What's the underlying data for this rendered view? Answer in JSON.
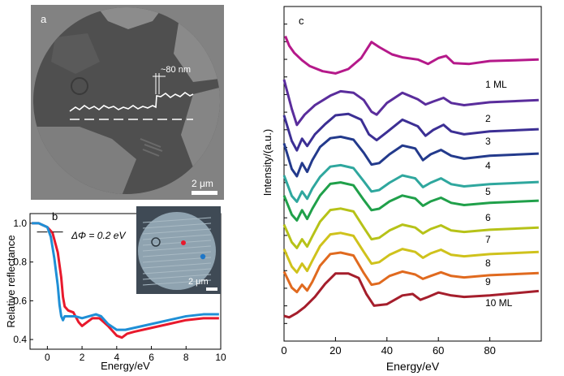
{
  "panel_a": {
    "label": "a",
    "step_label": "~80 nm",
    "scale_label": "2 μm",
    "colors": {
      "background": "#828282",
      "disk": "#4f4f4f",
      "bright_grain": "#8c8c8c",
      "trace": "#ffffff"
    }
  },
  "chart_data": [
    {
      "type": "line",
      "panel": "b",
      "label": "b",
      "xlabel": "Energy/eV",
      "ylabel": "Relative reflectance",
      "xlim": [
        -1,
        10
      ],
      "ylim": [
        0.35,
        1.05
      ],
      "xticks": [
        0,
        2,
        4,
        6,
        8,
        10
      ],
      "yticks": [
        0.4,
        0.6,
        0.8,
        1.0
      ],
      "xtick_labels": [
        "0",
        "2",
        "4",
        "6",
        "8",
        "10"
      ],
      "ytick_labels": [
        "0.4",
        "0.6",
        "0.8",
        "1.0"
      ],
      "annotation": "ΔΦ = 0.2 eV",
      "inset": {
        "scale_label": "2 μm",
        "marker_colors": [
          "#e8192c",
          "#1f77c8"
        ]
      },
      "grid": false,
      "series": [
        {
          "color": "#e8192c",
          "x": [
            -0.9,
            -0.5,
            0.0,
            0.3,
            0.6,
            0.8,
            0.9,
            1.0,
            1.1,
            1.2,
            1.5,
            1.8,
            2.0,
            2.3,
            2.6,
            3.0,
            3.5,
            4.0,
            4.3,
            4.6,
            5.0,
            6.0,
            7.0,
            8.0,
            9.0,
            9.9
          ],
          "y": [
            1.0,
            1.0,
            0.98,
            0.95,
            0.85,
            0.72,
            0.62,
            0.57,
            0.56,
            0.55,
            0.54,
            0.49,
            0.47,
            0.49,
            0.51,
            0.51,
            0.47,
            0.42,
            0.41,
            0.43,
            0.44,
            0.46,
            0.48,
            0.5,
            0.51,
            0.51
          ]
        },
        {
          "color": "#1f8fd6",
          "x": [
            -0.9,
            -0.5,
            0.0,
            0.2,
            0.4,
            0.6,
            0.7,
            0.8,
            0.9,
            1.0,
            1.3,
            1.6,
            2.0,
            2.4,
            2.8,
            3.1,
            3.5,
            4.0,
            4.5,
            5.0,
            6.0,
            7.0,
            8.0,
            9.0,
            9.9
          ],
          "y": [
            1.0,
            1.0,
            0.98,
            0.93,
            0.82,
            0.68,
            0.58,
            0.52,
            0.5,
            0.52,
            0.52,
            0.52,
            0.51,
            0.52,
            0.53,
            0.52,
            0.48,
            0.45,
            0.45,
            0.46,
            0.48,
            0.5,
            0.52,
            0.53,
            0.53
          ]
        }
      ]
    },
    {
      "type": "line",
      "panel": "c",
      "label": "c",
      "xlabel": "Energy/eV",
      "ylabel": "Intensity/(a.u.)",
      "xlim": [
        0,
        100
      ],
      "xticks": [
        0,
        20,
        40,
        60,
        80
      ],
      "xtick_labels": [
        "0",
        "20",
        "40",
        "60",
        "80"
      ],
      "grid": false,
      "series_labels": [
        "1 ML",
        "2",
        "3",
        "4",
        "5",
        "6",
        "7",
        "8",
        "9",
        "10 ML"
      ],
      "series": [
        {
          "color": "#b5198a",
          "offset": 75,
          "x": [
            0.5,
            2,
            4,
            7,
            10,
            15,
            20,
            25,
            30,
            34,
            37,
            42,
            46,
            52,
            56,
            60,
            63,
            66,
            72,
            80,
            90,
            99
          ],
          "y": [
            35,
            22,
            12,
            2,
            -6,
            -13,
            -16,
            -10,
            5,
            27,
            20,
            10,
            6,
            3,
            -3,
            5,
            8,
            -2,
            -3,
            1,
            2,
            3
          ]
        },
        {
          "color": "#5a2d9c",
          "offset": 0,
          "x": [
            0,
            3,
            5,
            8,
            12,
            18,
            22,
            27,
            31,
            34,
            36,
            40,
            46,
            52,
            55,
            58,
            62,
            65,
            70,
            80,
            99
          ],
          "y": [
            30,
            -10,
            -32,
            -18,
            -5,
            8,
            14,
            12,
            2,
            -14,
            -18,
            -2,
            12,
            3,
            -4,
            0,
            5,
            -2,
            -5,
            -1,
            2
          ]
        },
        {
          "color": "#3c2f94",
          "offset": 0,
          "x": [
            0,
            3,
            5,
            7,
            9,
            12,
            16,
            20,
            25,
            30,
            33,
            36,
            40,
            46,
            52,
            55,
            58,
            62,
            65,
            70,
            80,
            99
          ],
          "y": [
            20,
            -15,
            -28,
            -12,
            -22,
            -6,
            8,
            20,
            22,
            14,
            -6,
            -14,
            -3,
            14,
            5,
            -8,
            0,
            7,
            -2,
            -6,
            -2,
            1
          ]
        },
        {
          "color": "#233a8c",
          "offset": 0,
          "x": [
            0,
            3,
            5,
            7,
            9,
            11,
            14,
            18,
            22,
            27,
            31,
            34,
            37,
            41,
            46,
            51,
            54,
            57,
            61,
            65,
            70,
            80,
            99
          ],
          "y": [
            15,
            -20,
            -30,
            -12,
            -24,
            -8,
            10,
            22,
            24,
            20,
            2,
            -14,
            -12,
            0,
            12,
            8,
            -8,
            0,
            6,
            -2,
            -6,
            -2,
            1
          ]
        },
        {
          "color": "#2fa79e",
          "offset": 0,
          "x": [
            0,
            3,
            5,
            7,
            9,
            11,
            14,
            18,
            22,
            27,
            31,
            34,
            37,
            41,
            46,
            51,
            54,
            57,
            61,
            65,
            70,
            80,
            99
          ],
          "y": [
            10,
            -18,
            -26,
            -12,
            -22,
            -8,
            8,
            22,
            24,
            20,
            2,
            -12,
            -10,
            0,
            10,
            6,
            -6,
            0,
            6,
            -2,
            -5,
            -2,
            1
          ]
        },
        {
          "color": "#20a04a",
          "offset": 0,
          "x": [
            0,
            3,
            5,
            7,
            9,
            11,
            14,
            18,
            22,
            27,
            31,
            34,
            37,
            41,
            46,
            51,
            54,
            57,
            61,
            65,
            70,
            80,
            99
          ],
          "y": [
            8,
            -18,
            -26,
            -12,
            -24,
            -10,
            8,
            24,
            26,
            22,
            2,
            -12,
            -10,
            0,
            8,
            4,
            -6,
            0,
            5,
            -2,
            -5,
            -2,
            1
          ]
        },
        {
          "color": "#b6c218",
          "offset": 0,
          "x": [
            0,
            3,
            5,
            7,
            9,
            11,
            14,
            18,
            22,
            27,
            31,
            34,
            37,
            41,
            46,
            51,
            54,
            57,
            61,
            65,
            70,
            80,
            99
          ],
          "y": [
            6,
            -18,
            -26,
            -14,
            -24,
            -10,
            10,
            26,
            28,
            24,
            2,
            -14,
            -12,
            -2,
            6,
            2,
            -6,
            0,
            5,
            -2,
            -4,
            -1,
            2
          ]
        },
        {
          "color": "#cfc21c",
          "offset": 0,
          "x": [
            0,
            3,
            5,
            7,
            9,
            11,
            14,
            18,
            22,
            27,
            31,
            34,
            37,
            41,
            46,
            51,
            54,
            57,
            61,
            65,
            70,
            80,
            99
          ],
          "y": [
            6,
            -18,
            -26,
            -14,
            -24,
            -10,
            10,
            26,
            28,
            24,
            2,
            -14,
            -12,
            -2,
            6,
            2,
            -6,
            0,
            5,
            -2,
            -4,
            -1,
            2
          ]
        },
        {
          "color": "#e06a1f",
          "offset": 0,
          "x": [
            0,
            3,
            5,
            7,
            9,
            11,
            14,
            18,
            22,
            27,
            31,
            34,
            37,
            41,
            46,
            51,
            54,
            57,
            61,
            65,
            70,
            80,
            99
          ],
          "y": [
            4,
            -18,
            -24,
            -14,
            -22,
            -10,
            12,
            28,
            30,
            26,
            2,
            -14,
            -12,
            -2,
            4,
            0,
            -6,
            -2,
            3,
            -2,
            -4,
            -1,
            2
          ]
        },
        {
          "color": "#a51e2c",
          "offset": 0,
          "x": [
            0,
            2,
            5,
            8,
            12,
            16,
            20,
            25,
            29,
            32,
            35,
            40,
            46,
            50,
            53,
            56,
            60,
            65,
            70,
            80,
            99
          ],
          "y": [
            -30,
            -32,
            -26,
            -18,
            -4,
            14,
            28,
            28,
            22,
            0,
            -16,
            -14,
            -2,
            0,
            -8,
            -4,
            2,
            -2,
            -4,
            -2,
            4
          ]
        }
      ]
    }
  ]
}
